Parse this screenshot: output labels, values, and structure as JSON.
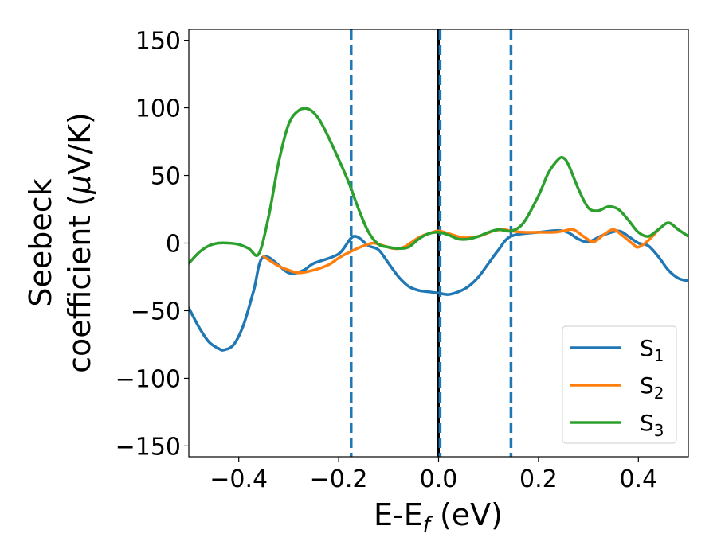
{
  "chart_data": {
    "type": "line",
    "xlabel": {
      "main": "E-E",
      "sub": "f",
      "suffix": " (eV)"
    },
    "ylabel": {
      "line1": "Seebeck",
      "line2_prefix": "coefficient  (",
      "line2_mu": "μ",
      "line2_suffix": "V/K)"
    },
    "xlim": [
      -0.5,
      0.5
    ],
    "ylim": [
      -158,
      158
    ],
    "xticks": [
      -0.4,
      -0.2,
      0.0,
      0.2,
      0.4
    ],
    "xtick_labels": [
      "−0.4",
      "−0.2",
      "0.0",
      "0.2",
      "0.4"
    ],
    "yticks": [
      -150,
      -100,
      -50,
      0,
      50,
      100,
      150
    ],
    "ytick_labels": [
      "−150",
      "−100",
      "−50",
      "0",
      "50",
      "100",
      "150"
    ],
    "legend_position": "bottom-right",
    "vlines": [
      {
        "x": -0.175,
        "style": "dashed",
        "color": "#1f77b4"
      },
      {
        "x": 0.0,
        "style": "solid",
        "color": "#000000"
      },
      {
        "x": 0.003,
        "style": "dashed",
        "color": "#1f77b4"
      },
      {
        "x": 0.145,
        "style": "dashed",
        "color": "#1f77b4"
      }
    ],
    "series": [
      {
        "name": "S",
        "sub": "1",
        "color": "#1f77b4",
        "x": [
          -0.5,
          -0.48,
          -0.46,
          -0.44,
          -0.43,
          -0.41,
          -0.39,
          -0.37,
          -0.35,
          -0.3,
          -0.27,
          -0.25,
          -0.2,
          -0.17,
          -0.14,
          -0.12,
          -0.1,
          -0.08,
          -0.06,
          -0.04,
          -0.02,
          0.0,
          0.02,
          0.04,
          0.06,
          0.08,
          0.1,
          0.12,
          0.145,
          0.2,
          0.25,
          0.28,
          0.3,
          0.33,
          0.36,
          0.38,
          0.4,
          0.42,
          0.44,
          0.46,
          0.48,
          0.5
        ],
        "y": [
          -48,
          -62,
          -73,
          -78,
          -79,
          -75,
          -60,
          -35,
          -10,
          -22,
          -20,
          -15,
          -8,
          5,
          -2,
          -5,
          -15,
          -25,
          -32,
          -35,
          -36,
          -37,
          -38,
          -36,
          -32,
          -25,
          -15,
          -5,
          5,
          8,
          9,
          3,
          1,
          6,
          9,
          5,
          0,
          -2,
          -10,
          -20,
          -26,
          -28
        ]
      },
      {
        "name": "S",
        "sub": "2",
        "color": "#ff7f0e",
        "x": [
          -0.35,
          -0.32,
          -0.3,
          -0.28,
          -0.25,
          -0.22,
          -0.2,
          -0.18,
          -0.15,
          -0.13,
          -0.11,
          -0.09,
          -0.07,
          -0.04,
          -0.02,
          0.0,
          0.02,
          0.05,
          0.08,
          0.11,
          0.13,
          0.145,
          0.17,
          0.2,
          0.23,
          0.25,
          0.27,
          0.29,
          0.31,
          0.33,
          0.35,
          0.37,
          0.39,
          0.4,
          0.42,
          0.44
        ],
        "y": [
          -10,
          -17,
          -20,
          -22,
          -20,
          -16,
          -11,
          -7,
          -2,
          0,
          -2,
          -4,
          -3,
          4,
          7,
          9,
          7,
          4,
          5,
          9,
          10,
          9,
          8,
          8,
          8,
          9,
          10,
          5,
          1,
          6,
          10,
          5,
          -1,
          -3,
          2,
          10
        ]
      },
      {
        "name": "S",
        "sub": "3",
        "color": "#2ca02c",
        "x": [
          -0.5,
          -0.48,
          -0.46,
          -0.44,
          -0.42,
          -0.4,
          -0.38,
          -0.36,
          -0.34,
          -0.32,
          -0.3,
          -0.28,
          -0.26,
          -0.24,
          -0.22,
          -0.2,
          -0.18,
          -0.16,
          -0.14,
          -0.12,
          -0.1,
          -0.08,
          -0.06,
          -0.04,
          -0.02,
          0.0,
          0.02,
          0.04,
          0.06,
          0.08,
          0.1,
          0.12,
          0.145,
          0.17,
          0.2,
          0.22,
          0.24,
          0.25,
          0.26,
          0.28,
          0.3,
          0.32,
          0.34,
          0.36,
          0.38,
          0.4,
          0.42,
          0.44,
          0.46,
          0.48,
          0.5
        ],
        "y": [
          -15,
          -7,
          -2,
          0,
          0,
          -1,
          -4,
          -8,
          20,
          60,
          88,
          98,
          99,
          92,
          78,
          62,
          45,
          25,
          8,
          -1,
          -3,
          -4,
          -3,
          3,
          7,
          8,
          6,
          3,
          3,
          5,
          8,
          10,
          9,
          15,
          35,
          52,
          62,
          63,
          58,
          40,
          26,
          24,
          27,
          25,
          17,
          8,
          5,
          10,
          15,
          10,
          5
        ]
      }
    ]
  }
}
